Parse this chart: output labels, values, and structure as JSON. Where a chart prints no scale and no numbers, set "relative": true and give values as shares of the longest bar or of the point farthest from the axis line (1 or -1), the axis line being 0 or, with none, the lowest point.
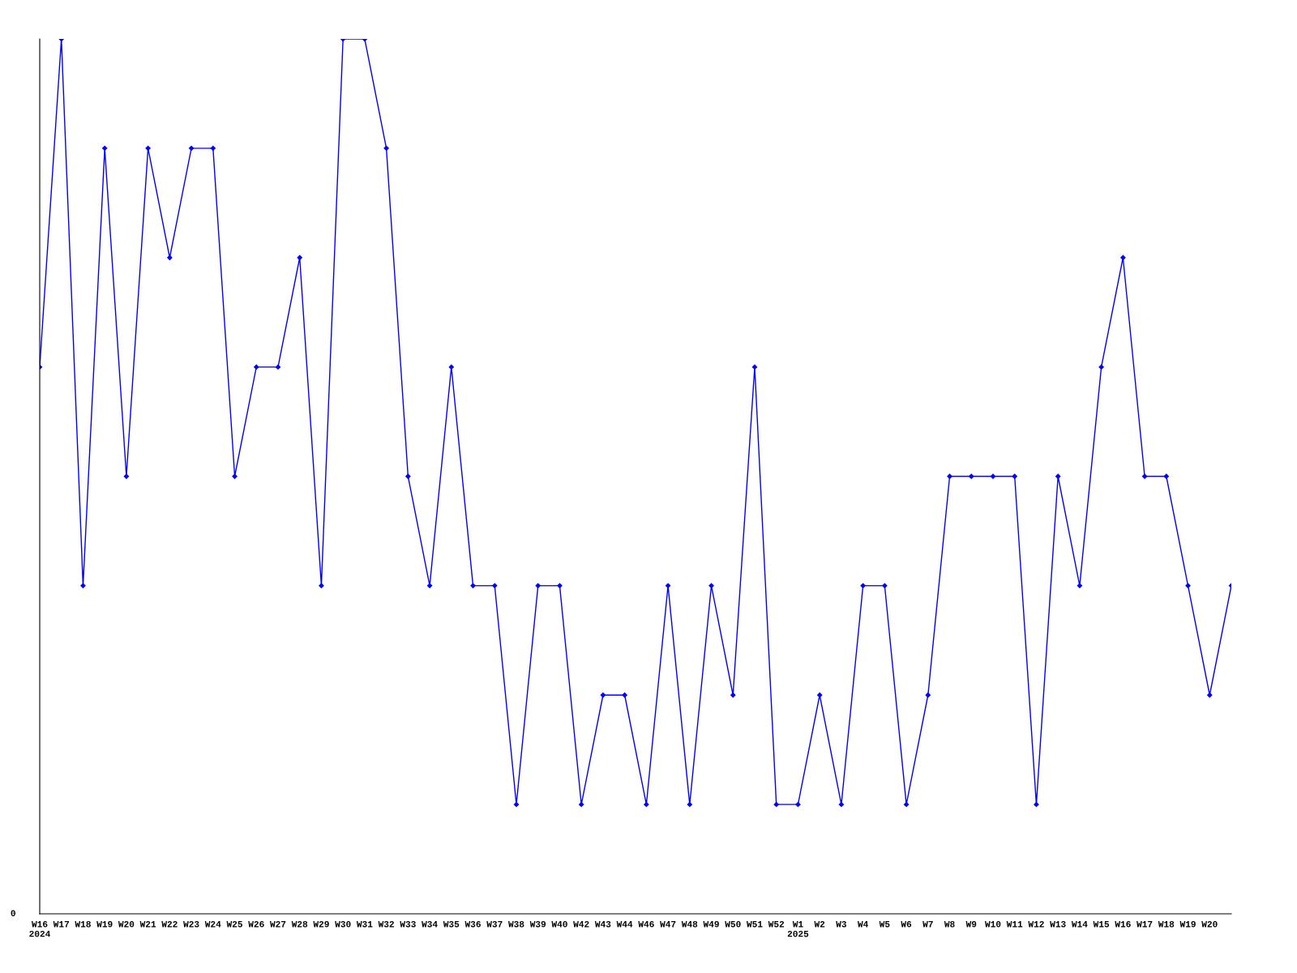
{
  "chart_data": {
    "type": "line",
    "relative": true,
    "categories": [
      "W16\n2024",
      "W17",
      "W18",
      "W19",
      "W20",
      "W21",
      "W22",
      "W23",
      "W24",
      "W25",
      "W26",
      "W27",
      "W28",
      "W29",
      "W30",
      "W31",
      "W32",
      "W33",
      "W34",
      "W35",
      "W36",
      "W37",
      "W38",
      "W39",
      "W40",
      "W42",
      "W43",
      "W44",
      "W46",
      "W47",
      "W48",
      "W49",
      "W50",
      "W51",
      "W52",
      "W1\n2025",
      "W2",
      "W3",
      "W4",
      "W5",
      "W6",
      "W7",
      "W8",
      "W9",
      "W10",
      "W11",
      "W12",
      "W13",
      "W14",
      "W15",
      "W16",
      "W17",
      "W18",
      "W19",
      "W20",
      null
    ],
    "series": [
      {
        "color": "#0000ff",
        "values": [
          0.625,
          1,
          0.375,
          0.875,
          0.5,
          0.875,
          0.75,
          0.875,
          0.875,
          0.5,
          0.625,
          0.625,
          0.75,
          0.375,
          1,
          1,
          0.875,
          0.5,
          0.375,
          0.625,
          0.375,
          0.375,
          0.125,
          0.375,
          0.375,
          0.125,
          0.25,
          0.25,
          0.125,
          0.375,
          0.125,
          0.375,
          0.25,
          0.625,
          0.125,
          0.125,
          0.25,
          0.125,
          0.375,
          0.375,
          0.125,
          0.25,
          0.5,
          0.5,
          0.5,
          0.5,
          0.125,
          0.5,
          0.375,
          0.625,
          0.75,
          0.5,
          0.5,
          0.375,
          0.25,
          0.375
        ]
      }
    ],
    "annotations": [
      "0"
    ],
    "marker": "diamond",
    "line_style": "solid",
    "grid": false,
    "legend": false
  }
}
